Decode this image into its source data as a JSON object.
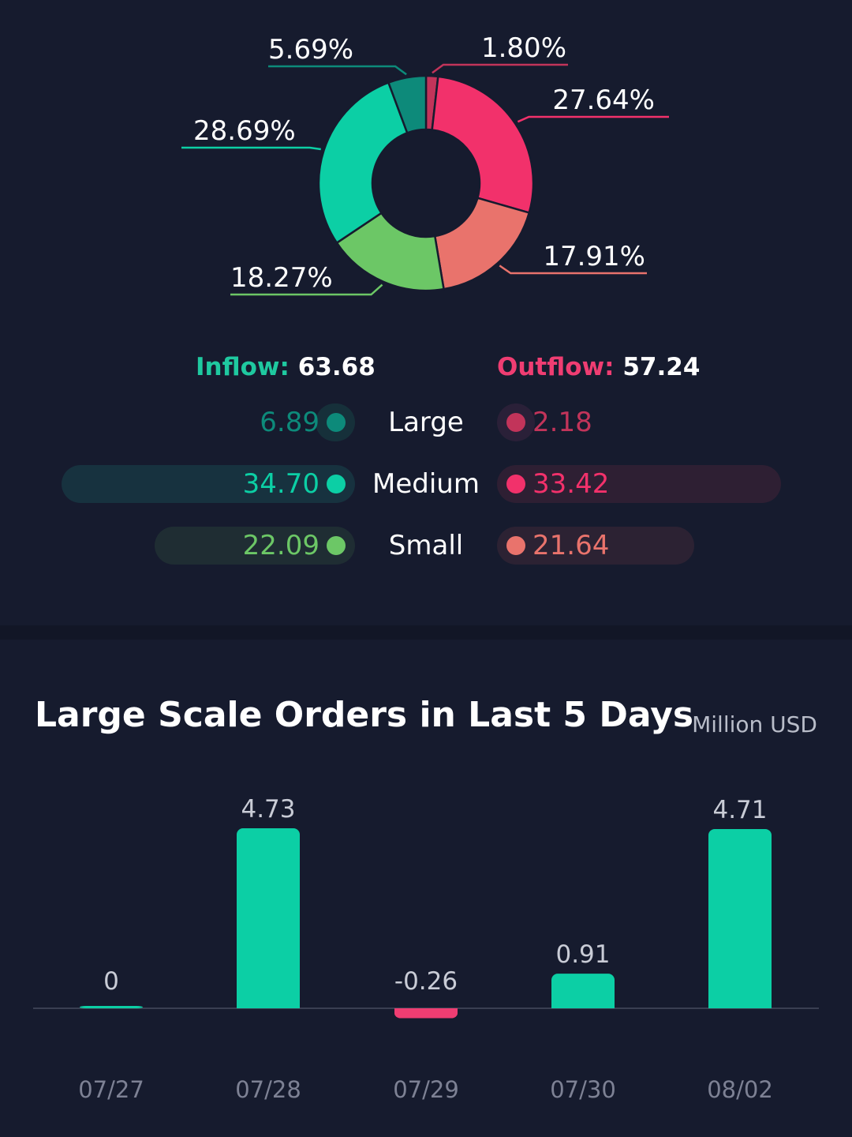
{
  "colors": {
    "inflow": "#1fc9a0",
    "outflow": "#ef3d72",
    "large_in": "#0d8a7a",
    "medium_in": "#0ccfa5",
    "small_in": "#6cc766",
    "large_out": "#c2345a",
    "medium_out": "#f2316b",
    "small_out": "#e9736c"
  },
  "donut": {
    "slices": [
      {
        "label": "1.80%",
        "value": 1.8,
        "color": "#c2345a"
      },
      {
        "label": "27.64%",
        "value": 27.64,
        "color": "#f2316b"
      },
      {
        "label": "17.91%",
        "value": 17.91,
        "color": "#e9736c"
      },
      {
        "label": "18.27%",
        "value": 18.27,
        "color": "#6cc766"
      },
      {
        "label": "28.69%",
        "value": 28.69,
        "color": "#0ccfa5"
      },
      {
        "label": "5.69%",
        "value": 5.69,
        "color": "#0d8a7a"
      }
    ]
  },
  "summary": {
    "inflow_label": "Inflow:",
    "inflow_value": "63.68",
    "outflow_label": "Outflow:",
    "outflow_value": "57.24"
  },
  "rows": [
    {
      "label": "Large",
      "inflow": "6.89",
      "outflow": "2.18",
      "inflow_num": 6.89,
      "outflow_num": 2.18
    },
    {
      "label": "Medium",
      "inflow": "34.70",
      "outflow": "33.42",
      "inflow_num": 34.7,
      "outflow_num": 33.42
    },
    {
      "label": "Small",
      "inflow": "22.09",
      "outflow": "21.64",
      "inflow_num": 22.09,
      "outflow_num": 21.64
    }
  ],
  "bar_section": {
    "title": "Large Scale Orders in Last 5 Days",
    "unit": "Million USD"
  },
  "chart_data": [
    {
      "type": "pie",
      "categories": [
        "Large Outflow",
        "Medium Outflow",
        "Small Outflow",
        "Small Inflow",
        "Medium Inflow",
        "Large Inflow"
      ],
      "values": [
        1.8,
        27.64,
        17.91,
        18.27,
        28.69,
        5.69
      ],
      "labels": [
        "1.80%",
        "27.64%",
        "17.91%",
        "18.27%",
        "28.69%",
        "5.69%"
      ]
    },
    {
      "type": "bar",
      "title": "Large Scale Orders in Last 5 Days",
      "ylabel": "Million USD",
      "categories": [
        "07/27",
        "07/28",
        "07/29",
        "07/30",
        "08/02"
      ],
      "values": [
        0,
        4.73,
        -0.26,
        0.91,
        4.71
      ],
      "labels": [
        "0",
        "4.73",
        "-0.26",
        "0.91",
        "4.71"
      ]
    }
  ]
}
